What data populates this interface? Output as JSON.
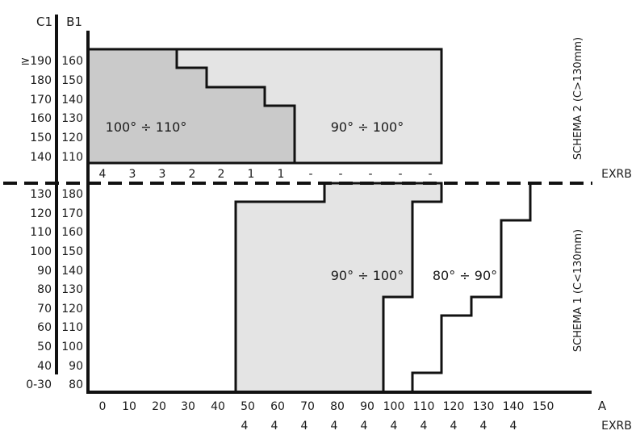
{
  "headers": {
    "c1": "C1",
    "b1": "B1"
  },
  "schema2": {
    "label": "SCHEMA 2 (C>130mm)",
    "rows": [
      {
        "c1": "≥190",
        "b1": "160"
      },
      {
        "c1": "180",
        "b1": "150"
      },
      {
        "c1": "170",
        "b1": "140"
      },
      {
        "c1": "160",
        "b1": "130"
      },
      {
        "c1": "150",
        "b1": "120"
      },
      {
        "c1": "140",
        "b1": "110"
      }
    ],
    "exrb_label": "EXRB",
    "exrb_values": [
      "4",
      "3",
      "3",
      "2",
      "2",
      "1",
      "1",
      "-",
      "-",
      "-",
      "-",
      "-"
    ],
    "region_dark_label": "100° ÷ 110°",
    "region_light_label": "90° ÷ 100°"
  },
  "schema1": {
    "label": "SCHEMA 1 (C<130mm)",
    "rows": [
      {
        "c1": "130",
        "b1": "180"
      },
      {
        "c1": "120",
        "b1": "170"
      },
      {
        "c1": "110",
        "b1": "160"
      },
      {
        "c1": "100",
        "b1": "150"
      },
      {
        "c1": "90",
        "b1": "140"
      },
      {
        "c1": "80",
        "b1": "130"
      },
      {
        "c1": "70",
        "b1": "120"
      },
      {
        "c1": "60",
        "b1": "110"
      },
      {
        "c1": "50",
        "b1": "100"
      },
      {
        "c1": "40",
        "b1": "90"
      },
      {
        "c1": "0-30",
        "b1": "80"
      }
    ],
    "region_gray_label": "90° ÷ 100°",
    "region_white_label": "80° ÷ 90°"
  },
  "x_axis": {
    "label": "A",
    "ticks": [
      "0",
      "10",
      "20",
      "30",
      "40",
      "50",
      "60",
      "70",
      "80",
      "90",
      "100",
      "110",
      "120",
      "130",
      "140",
      "150"
    ],
    "exrb_label": "EXRB",
    "exrb_values": [
      "4",
      "4",
      "4",
      "4",
      "4",
      "4",
      "4",
      "4",
      "4",
      "4"
    ]
  },
  "colors": {
    "dark_region": "#cacaca",
    "light_region": "#e4e4e4",
    "line": "#111111"
  }
}
